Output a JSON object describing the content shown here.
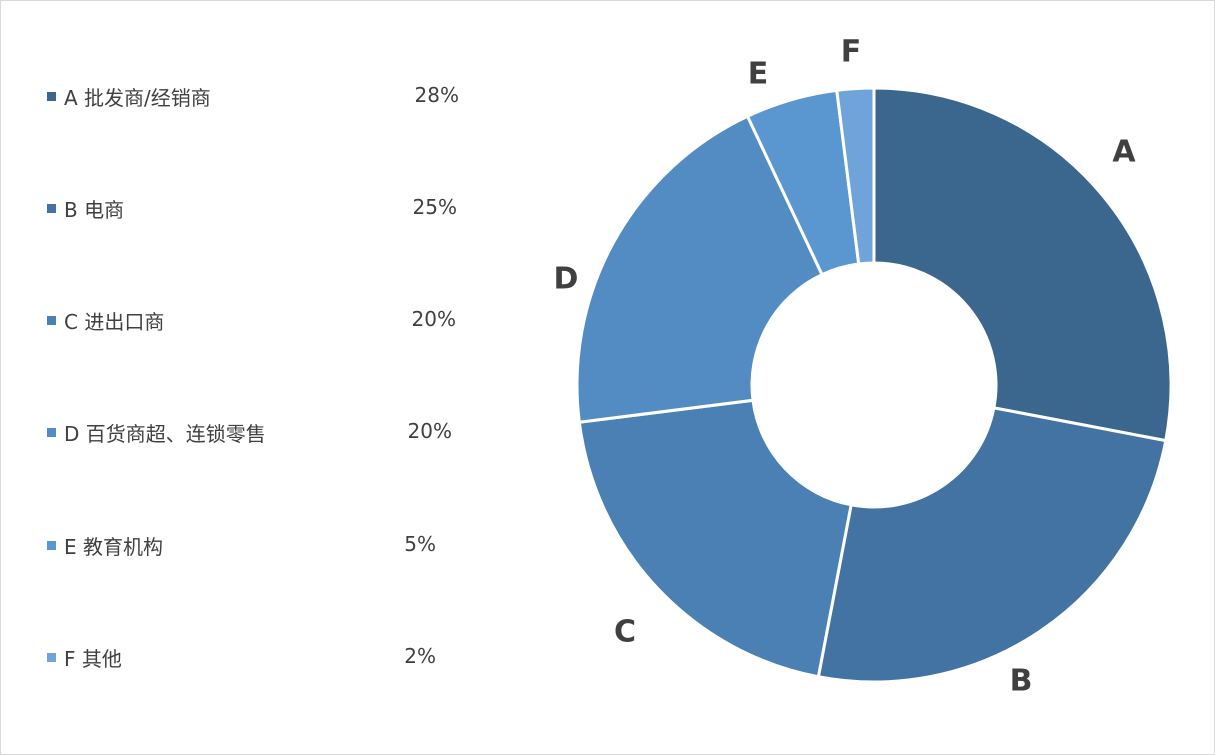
{
  "chart_data": {
    "type": "pie",
    "variant": "donut",
    "categories": [
      "A",
      "B",
      "C",
      "D",
      "E",
      "F"
    ],
    "legend_labels": [
      "A 批发商/经销商",
      "B 电商",
      "C 进出口商",
      "D 百货商超、连锁零售",
      "E 教育机构",
      "F 其他"
    ],
    "values": [
      28,
      25,
      20,
      20,
      5,
      2
    ],
    "value_labels": [
      "28%",
      "25%",
      "20%",
      "20%",
      "5%",
      "2%"
    ],
    "colors": [
      "#3b678f",
      "#4373a3",
      "#4a80b4",
      "#528cc3",
      "#5a96d0",
      "#70a3da"
    ],
    "legend_position": "left",
    "start_angle": "12 o'clock, clockwise"
  }
}
